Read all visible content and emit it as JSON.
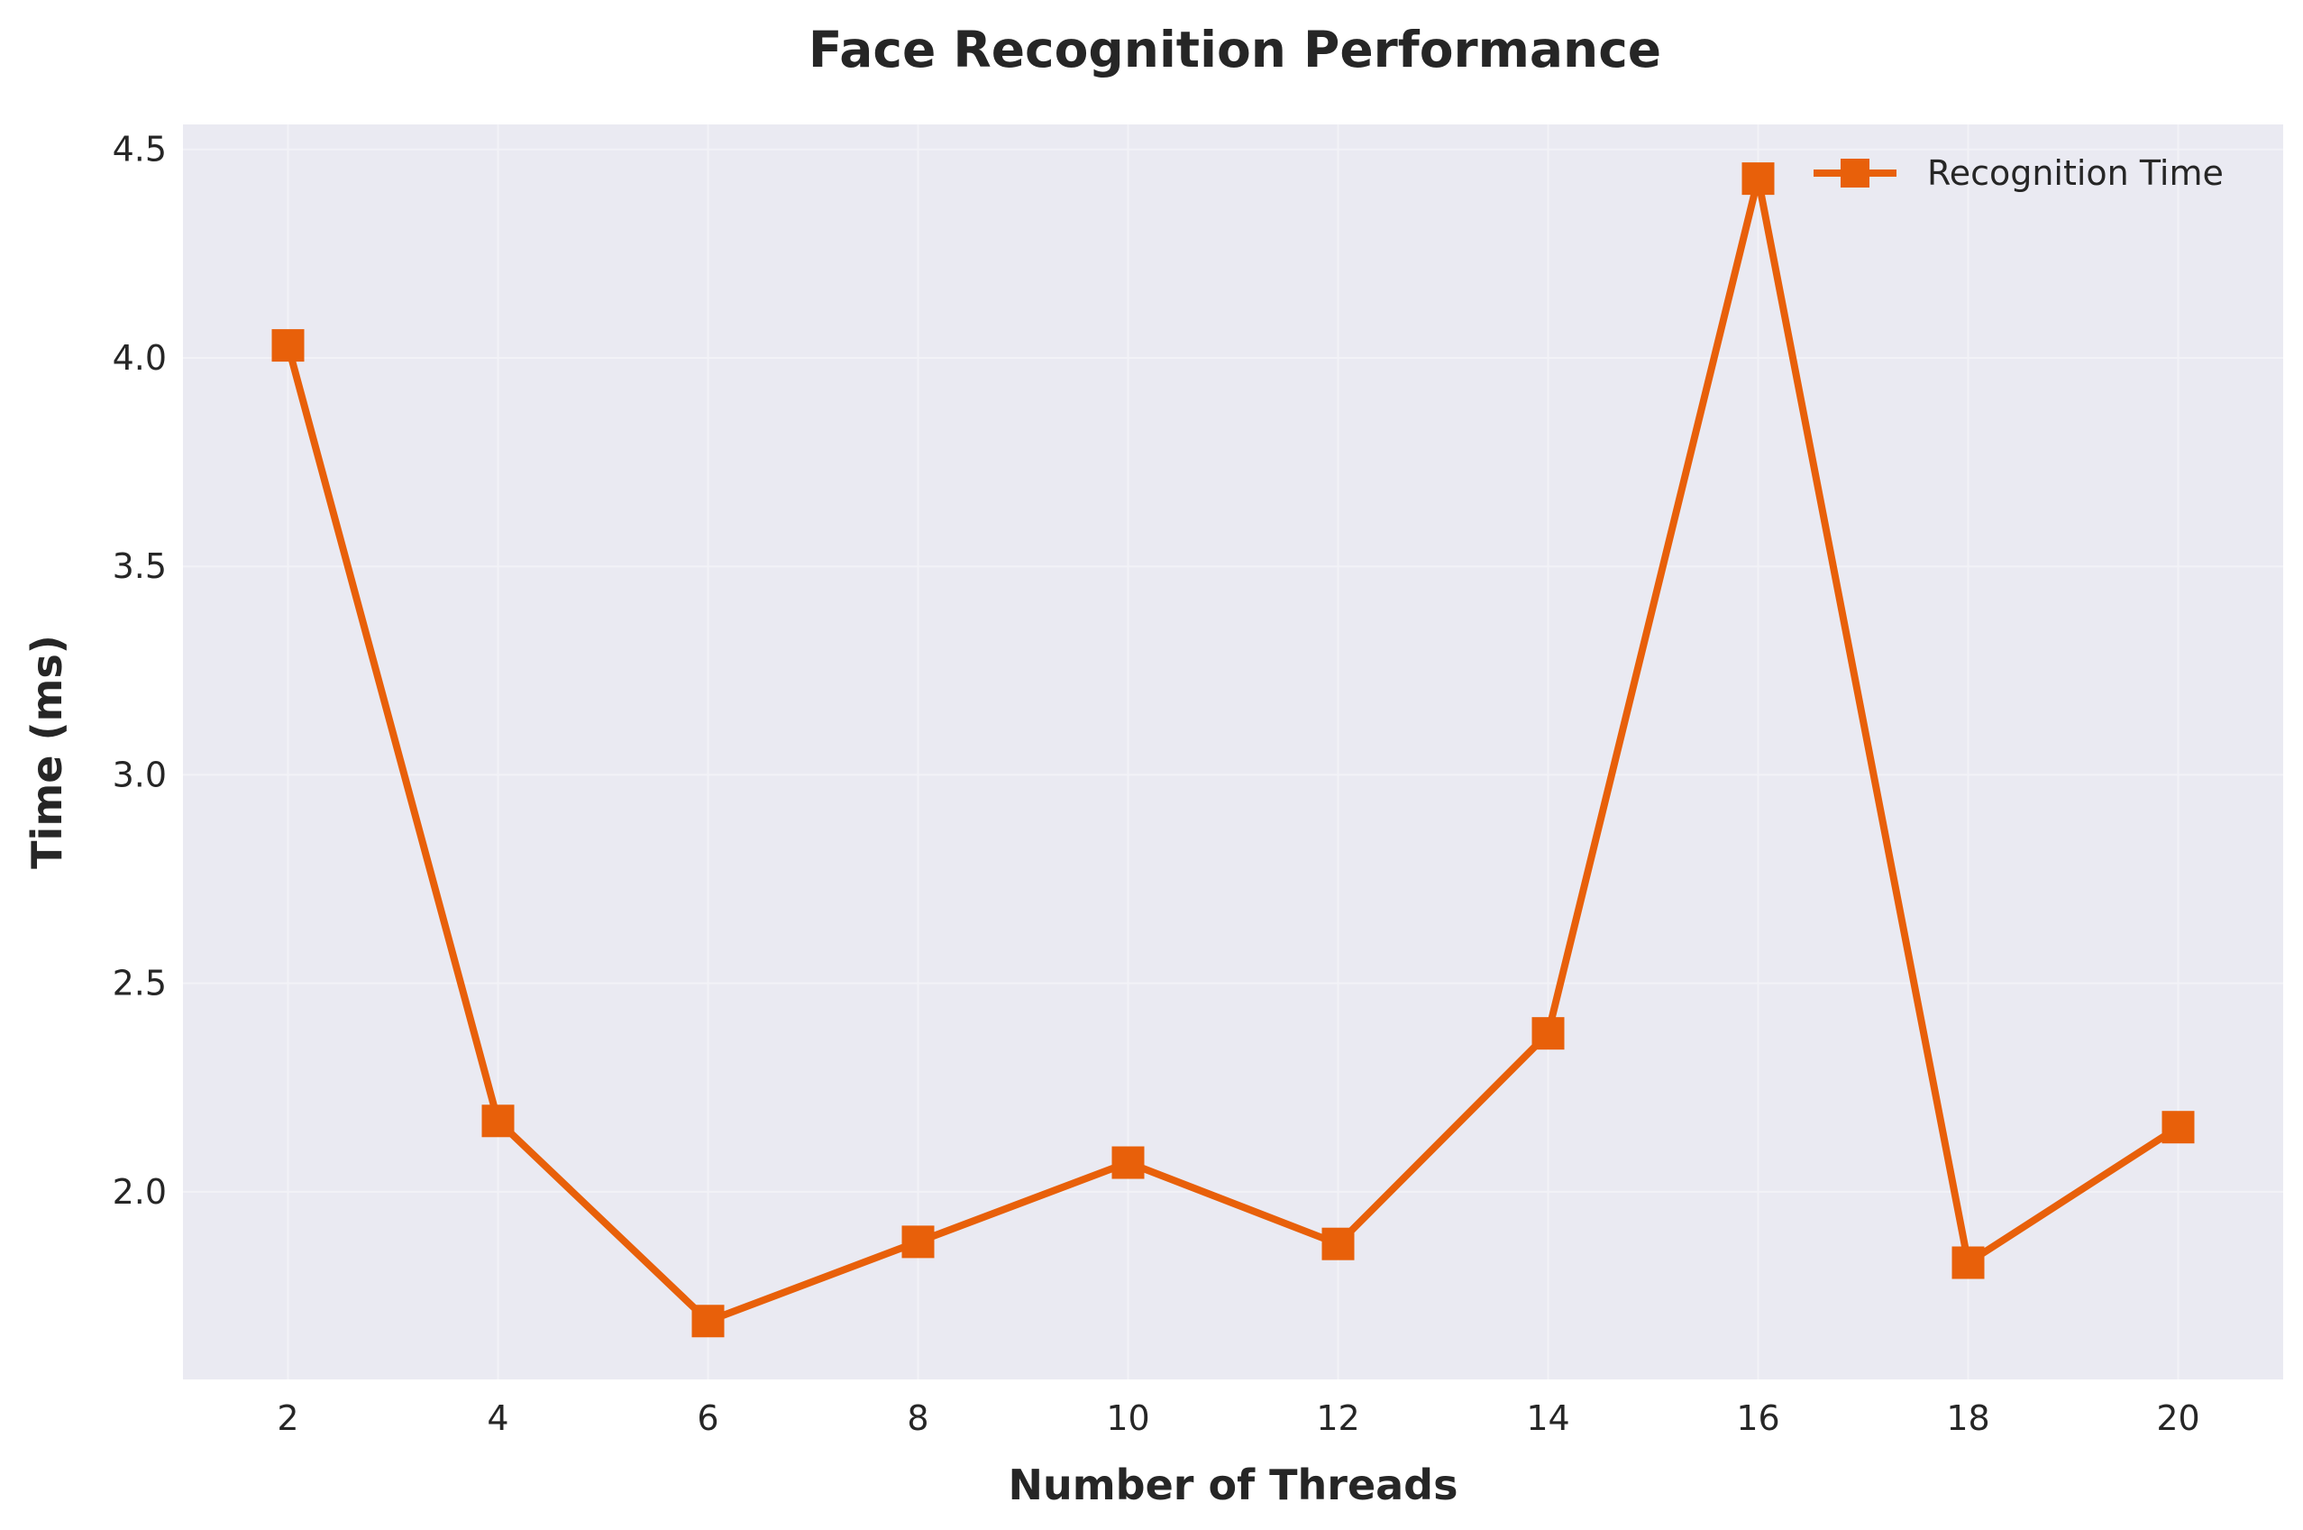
{
  "colors": {
    "plot_background": "#EAEAF2",
    "grid": "#F2F2F7",
    "series": "#E8600A",
    "text": "#262626"
  },
  "chart_data": {
    "type": "line",
    "title": "Face Recognition Performance",
    "xlabel": "Number of Threads",
    "ylabel": "Time (ms)",
    "x": [
      2,
      4,
      6,
      8,
      10,
      12,
      14,
      16,
      18,
      20
    ],
    "xlim": [
      1,
      21
    ],
    "ylim": [
      1.55,
      4.56
    ],
    "xticks": [
      2,
      4,
      6,
      8,
      10,
      12,
      14,
      16,
      18,
      20
    ],
    "yticks": [
      2.0,
      2.5,
      3.0,
      3.5,
      4.0,
      4.5
    ],
    "ytick_labels": [
      "2.0",
      "2.5",
      "3.0",
      "3.5",
      "4.0",
      "4.5"
    ],
    "grid": true,
    "legend_position": "top-right",
    "marker": "square",
    "series": [
      {
        "name": "Recognition Time",
        "values": [
          4.03,
          2.17,
          1.69,
          1.88,
          2.07,
          1.875,
          2.38,
          4.43,
          1.83,
          2.155
        ]
      }
    ]
  }
}
